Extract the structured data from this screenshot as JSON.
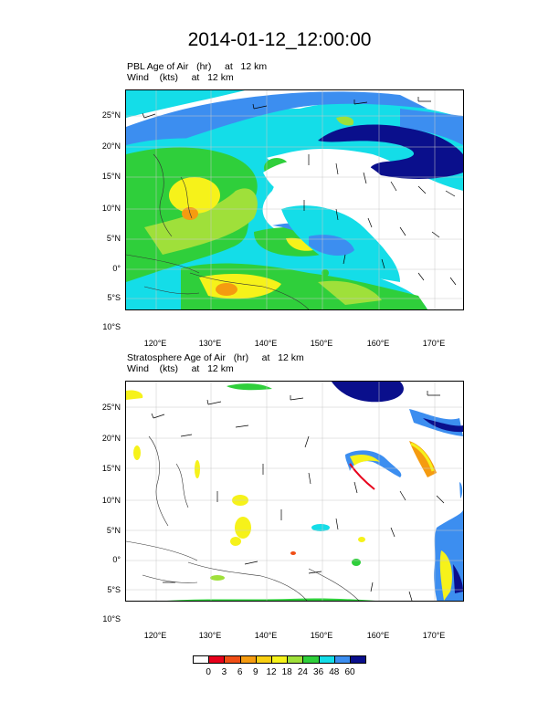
{
  "title": "2014-01-12_12:00:00",
  "panels": [
    {
      "label_line1": "PBL Age of Air   (hr)     at   12 km",
      "label_line2": "Wind    (kts)     at   12 km"
    },
    {
      "label_line1": "Stratosphere Age of Air   (hr)     at   12 km",
      "label_line2": "Wind    (kts)     at   12 km"
    }
  ],
  "lat_labels": [
    "25°N",
    "20°N",
    "15°N",
    "10°N",
    "5°N",
    "0°",
    "5°S",
    "10°S"
  ],
  "lon_labels": [
    "120°E",
    "130°E",
    "140°E",
    "150°E",
    "160°E",
    "170°E"
  ],
  "colorbar": {
    "labels": [
      "0",
      "3",
      "6",
      "9",
      "12",
      "18",
      "24",
      "36",
      "48",
      "60"
    ],
    "colors": [
      "#ffffff",
      "#e8001c",
      "#f04e16",
      "#f59b10",
      "#f8cf12",
      "#f6f21a",
      "#9fe03a",
      "#2fcf3b",
      "#14dde8",
      "#3c8ef0",
      "#0a0f8c"
    ]
  }
}
